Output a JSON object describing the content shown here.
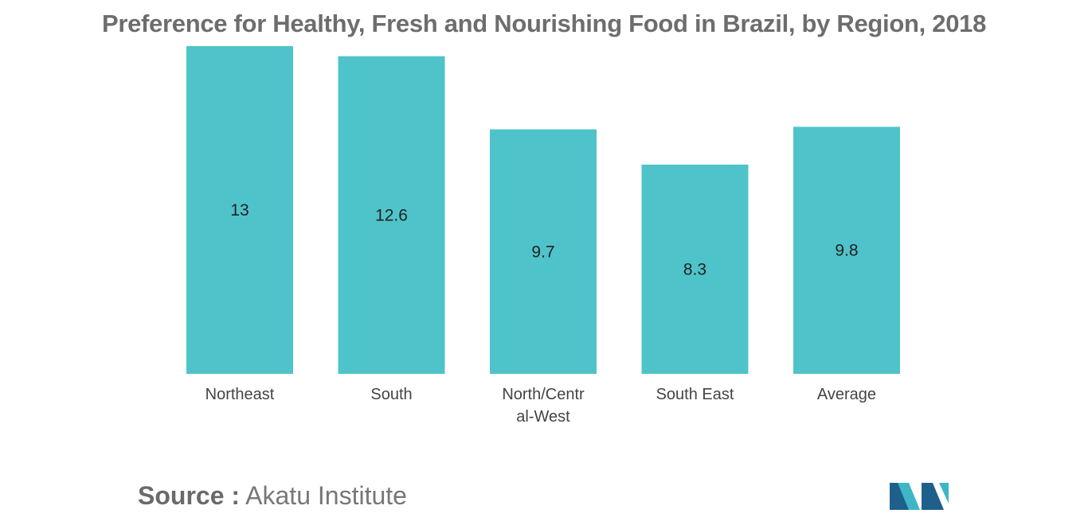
{
  "chart_data": {
    "type": "bar",
    "title": "Preference for Healthy, Fresh and Nourishing Food in Brazil, by Region, 2018",
    "categories": [
      "Northeast",
      "South",
      "North/Central-West",
      "South East",
      "Average"
    ],
    "category_lines": [
      [
        "Northeast"
      ],
      [
        "South"
      ],
      [
        "North/Centr",
        "al-West"
      ],
      [
        "South East"
      ],
      [
        "Average"
      ]
    ],
    "values": [
      13,
      12.6,
      9.7,
      8.3,
      9.8
    ],
    "value_labels": [
      "13",
      "12.6",
      "9.7",
      "8.3",
      "9.8"
    ],
    "xlabel": "",
    "ylabel": "",
    "ylim": [
      0,
      13
    ],
    "grid": false,
    "legend": "none",
    "bar_color": "#4fc3ca"
  },
  "source": {
    "prefix": "Source :",
    "text": "Akatu Institute"
  },
  "logo": {
    "name": "company-logo",
    "colors": [
      "#1f5f8b",
      "#3fb6c7"
    ]
  }
}
